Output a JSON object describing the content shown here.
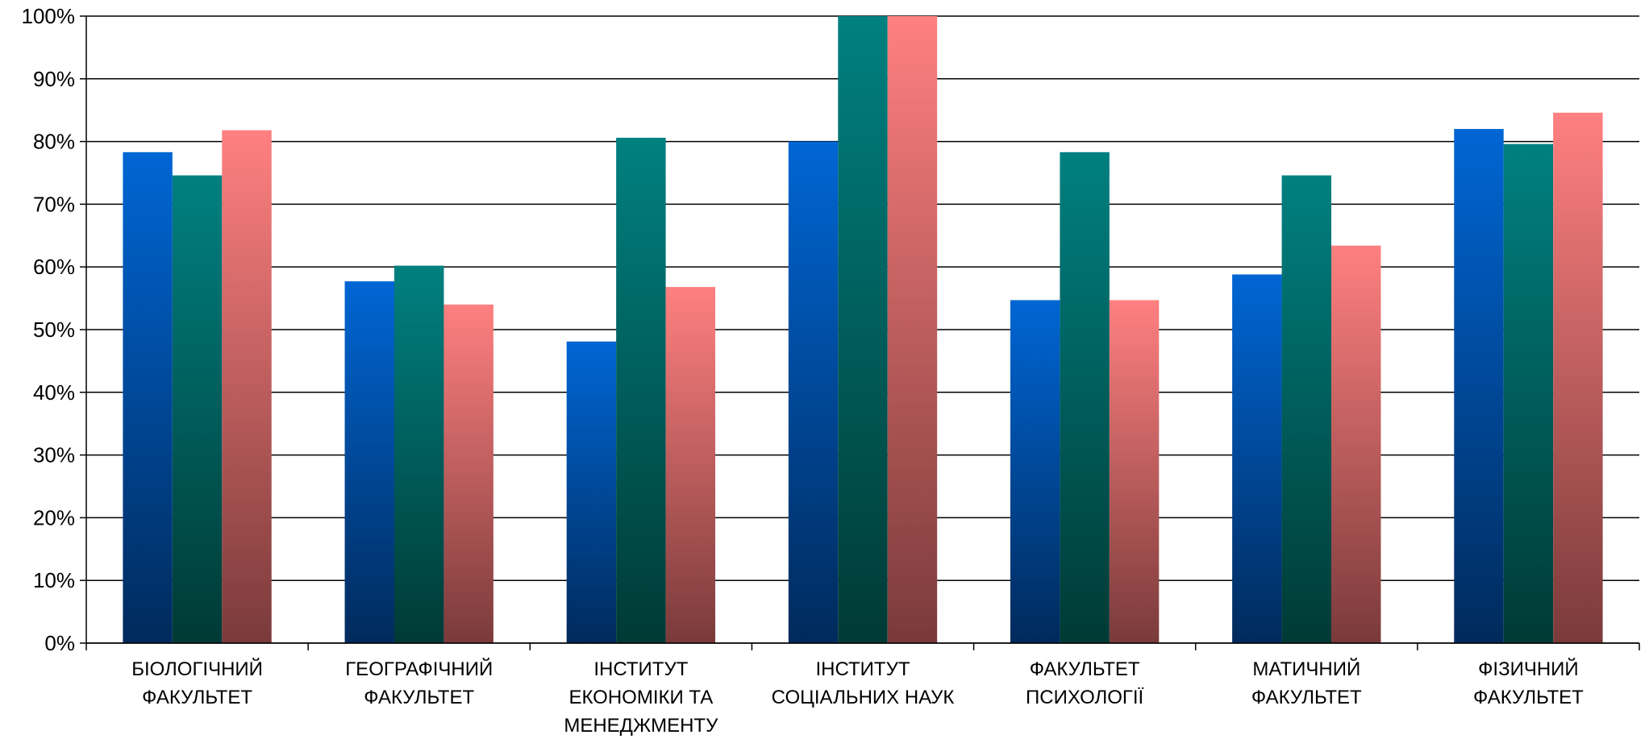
{
  "chart_data": {
    "type": "bar",
    "title": "",
    "xlabel": "",
    "ylabel": "",
    "ylim": [
      0,
      100
    ],
    "yticks": [
      0,
      10,
      20,
      30,
      40,
      50,
      60,
      70,
      80,
      90,
      100
    ],
    "ytick_suffix": "%",
    "grid": true,
    "legend": "none",
    "categories": [
      [
        "БІОЛОГІЧНИЙ",
        "ФАКУЛЬТЕТ"
      ],
      [
        "ГЕОГРАФІЧНИЙ",
        "ФАКУЛЬТЕТ"
      ],
      [
        "ІНСТИТУТ",
        "ЕКОНОМІКИ ТА",
        "МЕНЕДЖМЕНТУ"
      ],
      [
        "ІНСТИТУТ",
        "СОЦІАЛЬНИХ НАУК"
      ],
      [
        "ФАКУЛЬТЕТ",
        "ПСИХОЛОГІЇ"
      ],
      [
        "МАТИЧНИЙ",
        "ФАКУЛЬТЕТ"
      ],
      [
        "ФІЗИЧНИЙ",
        "ФАКУЛЬТЕТ"
      ]
    ],
    "series": [
      {
        "values": [
          78.3,
          57.7,
          48.1,
          80.0,
          54.7,
          58.8,
          82.0
        ],
        "color_top": "#0066d4",
        "color_bottom": "#002a5c"
      },
      {
        "values": [
          74.6,
          60.2,
          80.6,
          100.0,
          78.3,
          74.6,
          79.6
        ],
        "color_top": "#008080",
        "color_bottom": "#003a35"
      },
      {
        "values": [
          81.8,
          54.0,
          56.8,
          100.0,
          54.7,
          63.4,
          84.6
        ],
        "color_top": "#ff8080",
        "color_bottom": "#7a3a3a"
      }
    ]
  }
}
